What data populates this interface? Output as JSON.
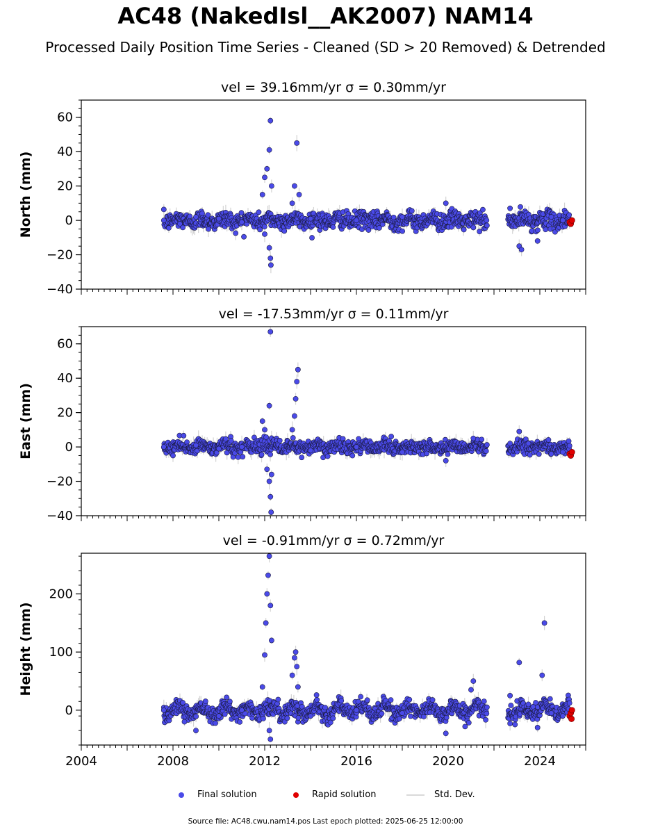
{
  "title": "AC48 (NakedIsl__AK2007) NAM14",
  "subtitle": "Processed Daily Position Time Series - Cleaned (SD > 20 Removed) & Detrended",
  "footer": "Source file: AC48.cwu.nam14.pos  Last epoch plotted: 2025-06-25 12:00:00",
  "legend": {
    "final": "Final solution",
    "rapid": "Rapid solution",
    "sd": "Std. Dev."
  },
  "colors": {
    "final": "#4a4ae8",
    "rapid": "#e00000",
    "sd": "#d3d3d3",
    "edge": "#1a1a40"
  },
  "chart_data": [
    {
      "type": "scatter",
      "title": "vel = 39.16mm/yr   σ = 0.30mm/yr",
      "ylabel": "North (mm)",
      "xlim": [
        2004,
        2026
      ],
      "ylim": [
        -40,
        70
      ],
      "yticks": [
        -40,
        -20,
        0,
        20,
        40,
        60
      ],
      "xticks": [
        2004,
        2008,
        2012,
        2016,
        2020,
        2024
      ],
      "x_gaps": [
        [
          2021.7,
          2022.6
        ]
      ],
      "data_start": 2007.6,
      "data_end": 2025.3,
      "baseline_spread": 2.5,
      "seasonal_amplitude": 1.0,
      "final_samples": [
        [
          2007.6,
          0
        ],
        [
          2008.3,
          -2
        ],
        [
          2009.0,
          2
        ],
        [
          2010.0,
          1
        ],
        [
          2011.0,
          -1
        ],
        [
          2011.9,
          15
        ],
        [
          2012.0,
          25
        ],
        [
          2012.1,
          30
        ],
        [
          2012.2,
          41
        ],
        [
          2012.25,
          58
        ],
        [
          2012.3,
          20
        ],
        [
          2012.0,
          -8
        ],
        [
          2012.2,
          -16
        ],
        [
          2012.25,
          -22
        ],
        [
          2012.27,
          -26
        ],
        [
          2013.2,
          10
        ],
        [
          2013.3,
          20
        ],
        [
          2013.4,
          45
        ],
        [
          2013.5,
          15
        ],
        [
          2014.0,
          1
        ],
        [
          2016.0,
          0
        ],
        [
          2018.0,
          2
        ],
        [
          2019.9,
          10
        ],
        [
          2022.7,
          7
        ],
        [
          2023.1,
          -15
        ],
        [
          2023.2,
          -17
        ],
        [
          2023.9,
          -12
        ],
        [
          2024.5,
          2
        ],
        [
          2025.0,
          0
        ]
      ],
      "rapid": [
        [
          2025.3,
          -1
        ],
        [
          2025.35,
          -2
        ],
        [
          2025.4,
          0
        ]
      ]
    },
    {
      "type": "scatter",
      "title": "vel = -17.53mm/yr   σ = 0.11mm/yr",
      "ylabel": "East (mm)",
      "xlim": [
        2004,
        2026
      ],
      "ylim": [
        -40,
        70
      ],
      "yticks": [
        -40,
        -20,
        0,
        20,
        40,
        60
      ],
      "xticks": [
        2004,
        2008,
        2012,
        2016,
        2020,
        2024
      ],
      "x_gaps": [
        [
          2021.7,
          2022.6
        ]
      ],
      "data_start": 2007.6,
      "data_end": 2025.3,
      "baseline_spread": 2.0,
      "seasonal_amplitude": 1.0,
      "final_samples": [
        [
          2007.6,
          0
        ],
        [
          2008.0,
          -5
        ],
        [
          2009.0,
          1
        ],
        [
          2010.0,
          -1
        ],
        [
          2011.0,
          0
        ],
        [
          2011.9,
          15
        ],
        [
          2012.0,
          10
        ],
        [
          2012.1,
          -13
        ],
        [
          2012.2,
          24
        ],
        [
          2012.25,
          67
        ],
        [
          2012.2,
          -20
        ],
        [
          2012.25,
          -29
        ],
        [
          2012.28,
          -38
        ],
        [
          2012.3,
          -16
        ],
        [
          2013.2,
          10
        ],
        [
          2013.3,
          18
        ],
        [
          2013.35,
          28
        ],
        [
          2013.4,
          38
        ],
        [
          2013.45,
          45
        ],
        [
          2014.0,
          -2
        ],
        [
          2016.0,
          0
        ],
        [
          2018.0,
          -3
        ],
        [
          2019.9,
          -8
        ],
        [
          2021.1,
          5
        ],
        [
          2022.7,
          2
        ],
        [
          2023.1,
          9
        ],
        [
          2023.5,
          2
        ],
        [
          2024.5,
          -4
        ],
        [
          2025.0,
          -3
        ]
      ],
      "rapid": [
        [
          2025.3,
          -4
        ],
        [
          2025.35,
          -5
        ],
        [
          2025.4,
          -3
        ]
      ]
    },
    {
      "type": "scatter",
      "title": "vel = -0.91mm/yr   σ = 0.72mm/yr",
      "ylabel": "Height (mm)",
      "xlim": [
        2004,
        2026
      ],
      "ylim": [
        -60,
        270
      ],
      "yticks": [
        0,
        100,
        200
      ],
      "xticks": [
        2004,
        2008,
        2012,
        2016,
        2020,
        2024
      ],
      "xticklabels": [
        "2004",
        "2008",
        "2012",
        "2016",
        "2020",
        "2024"
      ],
      "x_gaps": [
        [
          2021.7,
          2022.6
        ]
      ],
      "data_start": 2007.6,
      "data_end": 2025.3,
      "baseline_spread": 7.0,
      "seasonal_amplitude": 8.0,
      "final_samples": [
        [
          2007.6,
          0
        ],
        [
          2008.5,
          -20
        ],
        [
          2009.0,
          -35
        ],
        [
          2010.0,
          -10
        ],
        [
          2011.0,
          0
        ],
        [
          2011.9,
          40
        ],
        [
          2012.0,
          95
        ],
        [
          2012.05,
          150
        ],
        [
          2012.1,
          200
        ],
        [
          2012.15,
          232
        ],
        [
          2012.2,
          265
        ],
        [
          2012.25,
          180
        ],
        [
          2012.3,
          120
        ],
        [
          2012.2,
          -35
        ],
        [
          2012.25,
          -50
        ],
        [
          2013.2,
          60
        ],
        [
          2013.3,
          90
        ],
        [
          2013.35,
          100
        ],
        [
          2013.4,
          75
        ],
        [
          2013.45,
          40
        ],
        [
          2014.0,
          -10
        ],
        [
          2016.0,
          0
        ],
        [
          2018.0,
          -5
        ],
        [
          2019.9,
          -40
        ],
        [
          2021.1,
          50
        ],
        [
          2021.0,
          35
        ],
        [
          2022.7,
          25
        ],
        [
          2023.1,
          82
        ],
        [
          2023.5,
          10
        ],
        [
          2023.9,
          -30
        ],
        [
          2024.1,
          60
        ],
        [
          2024.2,
          150
        ],
        [
          2024.5,
          -5
        ],
        [
          2025.0,
          -10
        ]
      ],
      "rapid": [
        [
          2025.3,
          -10
        ],
        [
          2025.35,
          -5
        ],
        [
          2025.4,
          0
        ],
        [
          2025.38,
          -15
        ]
      ]
    }
  ]
}
